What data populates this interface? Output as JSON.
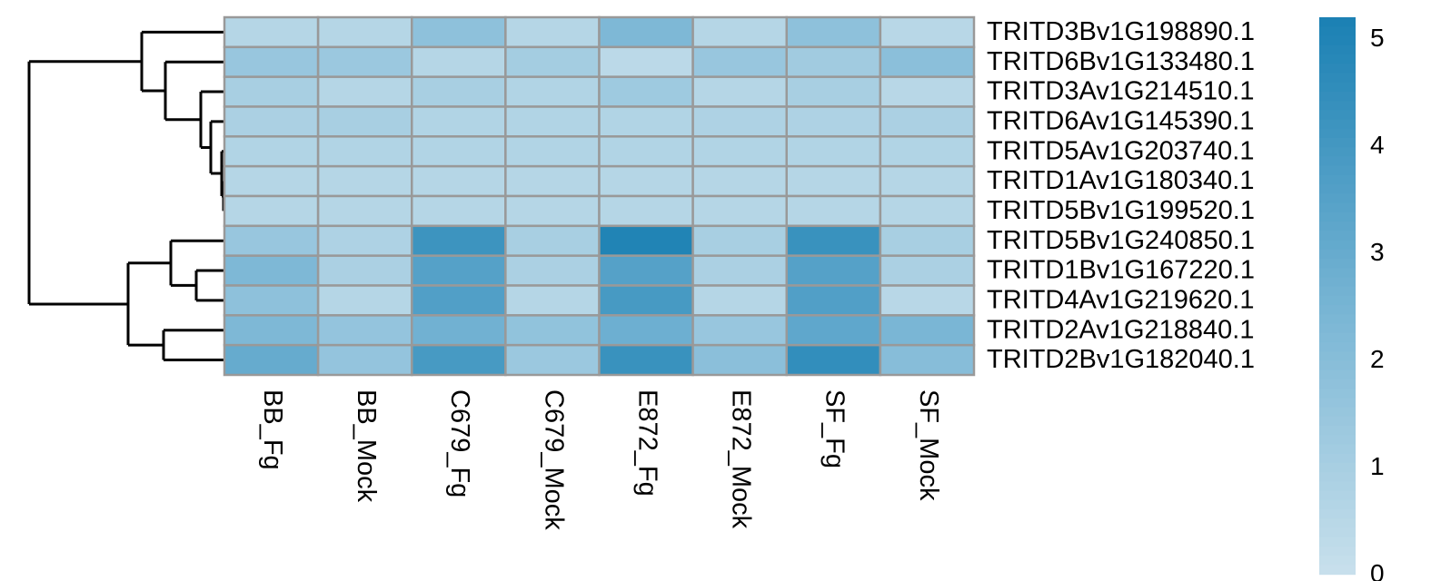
{
  "chart_data": {
    "type": "heatmap",
    "columns": [
      "BB_Fg",
      "BB_Mock",
      "C679_Fg",
      "C679_Mock",
      "E872_Fg",
      "E872_Mock",
      "SF_Fg",
      "SF_Mock"
    ],
    "rows": [
      "TRITD3Bv1G198890.1",
      "TRITD6Bv1G133480.1",
      "TRITD3Av1G214510.1",
      "TRITD6Av1G145390.1",
      "TRITD5Av1G203740.1",
      "TRITD1Av1G180340.1",
      "TRITD5Bv1G199520.1",
      "TRITD5Bv1G240850.1",
      "TRITD1Bv1G167220.1",
      "TRITD4Av1G219620.1",
      "TRITD2Av1G218840.1",
      "TRITD2Bv1G182040.1"
    ],
    "values": [
      [
        0.6,
        0.6,
        1.8,
        0.6,
        2.3,
        0.6,
        1.8,
        0.5
      ],
      [
        1.5,
        1.4,
        0.6,
        1.1,
        0.4,
        1.5,
        1.2,
        1.9
      ],
      [
        1.0,
        0.6,
        1.0,
        0.7,
        1.3,
        0.6,
        1.0,
        0.5
      ],
      [
        0.9,
        1.0,
        0.7,
        0.7,
        0.7,
        0.8,
        0.8,
        0.9
      ],
      [
        0.7,
        0.7,
        0.7,
        0.7,
        0.7,
        0.7,
        0.7,
        0.7
      ],
      [
        0.6,
        0.6,
        0.6,
        0.6,
        0.6,
        0.6,
        0.6,
        0.6
      ],
      [
        0.6,
        0.6,
        0.6,
        0.6,
        0.6,
        0.6,
        0.6,
        0.6
      ],
      [
        1.5,
        0.8,
        4.2,
        1.0,
        5.0,
        1.0,
        4.3,
        1.0
      ],
      [
        2.3,
        0.9,
        3.5,
        0.9,
        3.5,
        0.9,
        3.5,
        0.9
      ],
      [
        1.8,
        0.6,
        3.6,
        0.6,
        3.9,
        0.6,
        3.6,
        0.5
      ],
      [
        2.3,
        1.6,
        2.7,
        1.7,
        2.8,
        1.5,
        3.2,
        2.4
      ],
      [
        3.0,
        1.6,
        3.9,
        1.4,
        4.3,
        1.9,
        4.5,
        2.0
      ]
    ],
    "colorscale": [
      [
        0,
        "#c8e0ec"
      ],
      [
        2.6,
        "#74b3d3"
      ],
      [
        5.2,
        "#1a80b3"
      ]
    ],
    "clim": [
      0,
      5.2
    ],
    "cticks": [
      0,
      1,
      2,
      3,
      4,
      5
    ]
  }
}
